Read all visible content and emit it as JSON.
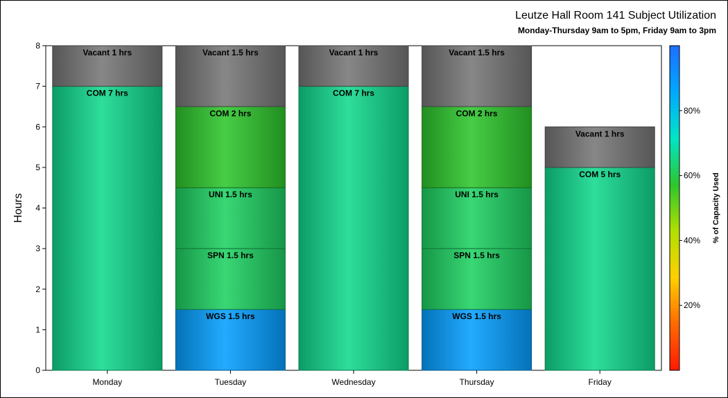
{
  "chart_data": {
    "type": "bar",
    "stacked": true,
    "title": "Leutze Hall Room 141 Subject Utilization",
    "subtitle": "Monday-Thursday 9am to 5pm, Friday 9am to 3pm",
    "ylabel": "Hours",
    "xlabel": "",
    "ylim": [
      0,
      8
    ],
    "yticks": [
      "0",
      "1",
      "2",
      "3",
      "4",
      "5",
      "6",
      "7",
      "8"
    ],
    "categories": [
      "Monday",
      "Tuesday",
      "Wednesday",
      "Thursday",
      "Friday"
    ],
    "bars": [
      {
        "day": "Monday",
        "segments": [
          {
            "label": "COM 7 hrs",
            "hours": 7,
            "capacity": 0.66
          },
          {
            "label": "Vacant 1 hrs",
            "hours": 1,
            "vacant": true
          }
        ]
      },
      {
        "day": "Tuesday",
        "segments": [
          {
            "label": "WGS 1.5 hrs",
            "hours": 1.5,
            "capacity": 0.88
          },
          {
            "label": "SPN 1.5 hrs",
            "hours": 1.5,
            "capacity": 0.62
          },
          {
            "label": "UNI 1.5 hrs",
            "hours": 1.5,
            "capacity": 0.62
          },
          {
            "label": "COM 2 hrs",
            "hours": 2,
            "capacity": 0.57
          },
          {
            "label": "Vacant 1.5 hrs",
            "hours": 1.5,
            "vacant": true
          }
        ]
      },
      {
        "day": "Wednesday",
        "segments": [
          {
            "label": "COM 7 hrs",
            "hours": 7,
            "capacity": 0.66
          },
          {
            "label": "Vacant 1 hrs",
            "hours": 1,
            "vacant": true
          }
        ]
      },
      {
        "day": "Thursday",
        "segments": [
          {
            "label": "WGS 1.5 hrs",
            "hours": 1.5,
            "capacity": 0.88
          },
          {
            "label": "SPN 1.5 hrs",
            "hours": 1.5,
            "capacity": 0.62
          },
          {
            "label": "UNI 1.5 hrs",
            "hours": 1.5,
            "capacity": 0.62
          },
          {
            "label": "COM 2 hrs",
            "hours": 2,
            "capacity": 0.57
          },
          {
            "label": "Vacant 1.5 hrs",
            "hours": 1.5,
            "vacant": true
          }
        ]
      },
      {
        "day": "Friday",
        "segments": [
          {
            "label": "COM 5 hrs",
            "hours": 5,
            "capacity": 0.66
          },
          {
            "label": "Vacant 1 hrs",
            "hours": 1,
            "vacant": true
          }
        ]
      }
    ],
    "colorbar": {
      "label": "% of Capacity Used",
      "ticks": [
        "20%",
        "40%",
        "60%",
        "80%"
      ],
      "tick_values": [
        0.2,
        0.4,
        0.6,
        0.8
      ],
      "range": [
        0,
        1
      ],
      "colors": [
        "#ff1a00",
        "#ff6a00",
        "#ffd000",
        "#b0e000",
        "#2dc62d",
        "#00e5c8",
        "#00a8ff",
        "#1e6fff"
      ]
    },
    "vacant_color": "#777777",
    "grid": false,
    "legend": "colorbar-right"
  }
}
